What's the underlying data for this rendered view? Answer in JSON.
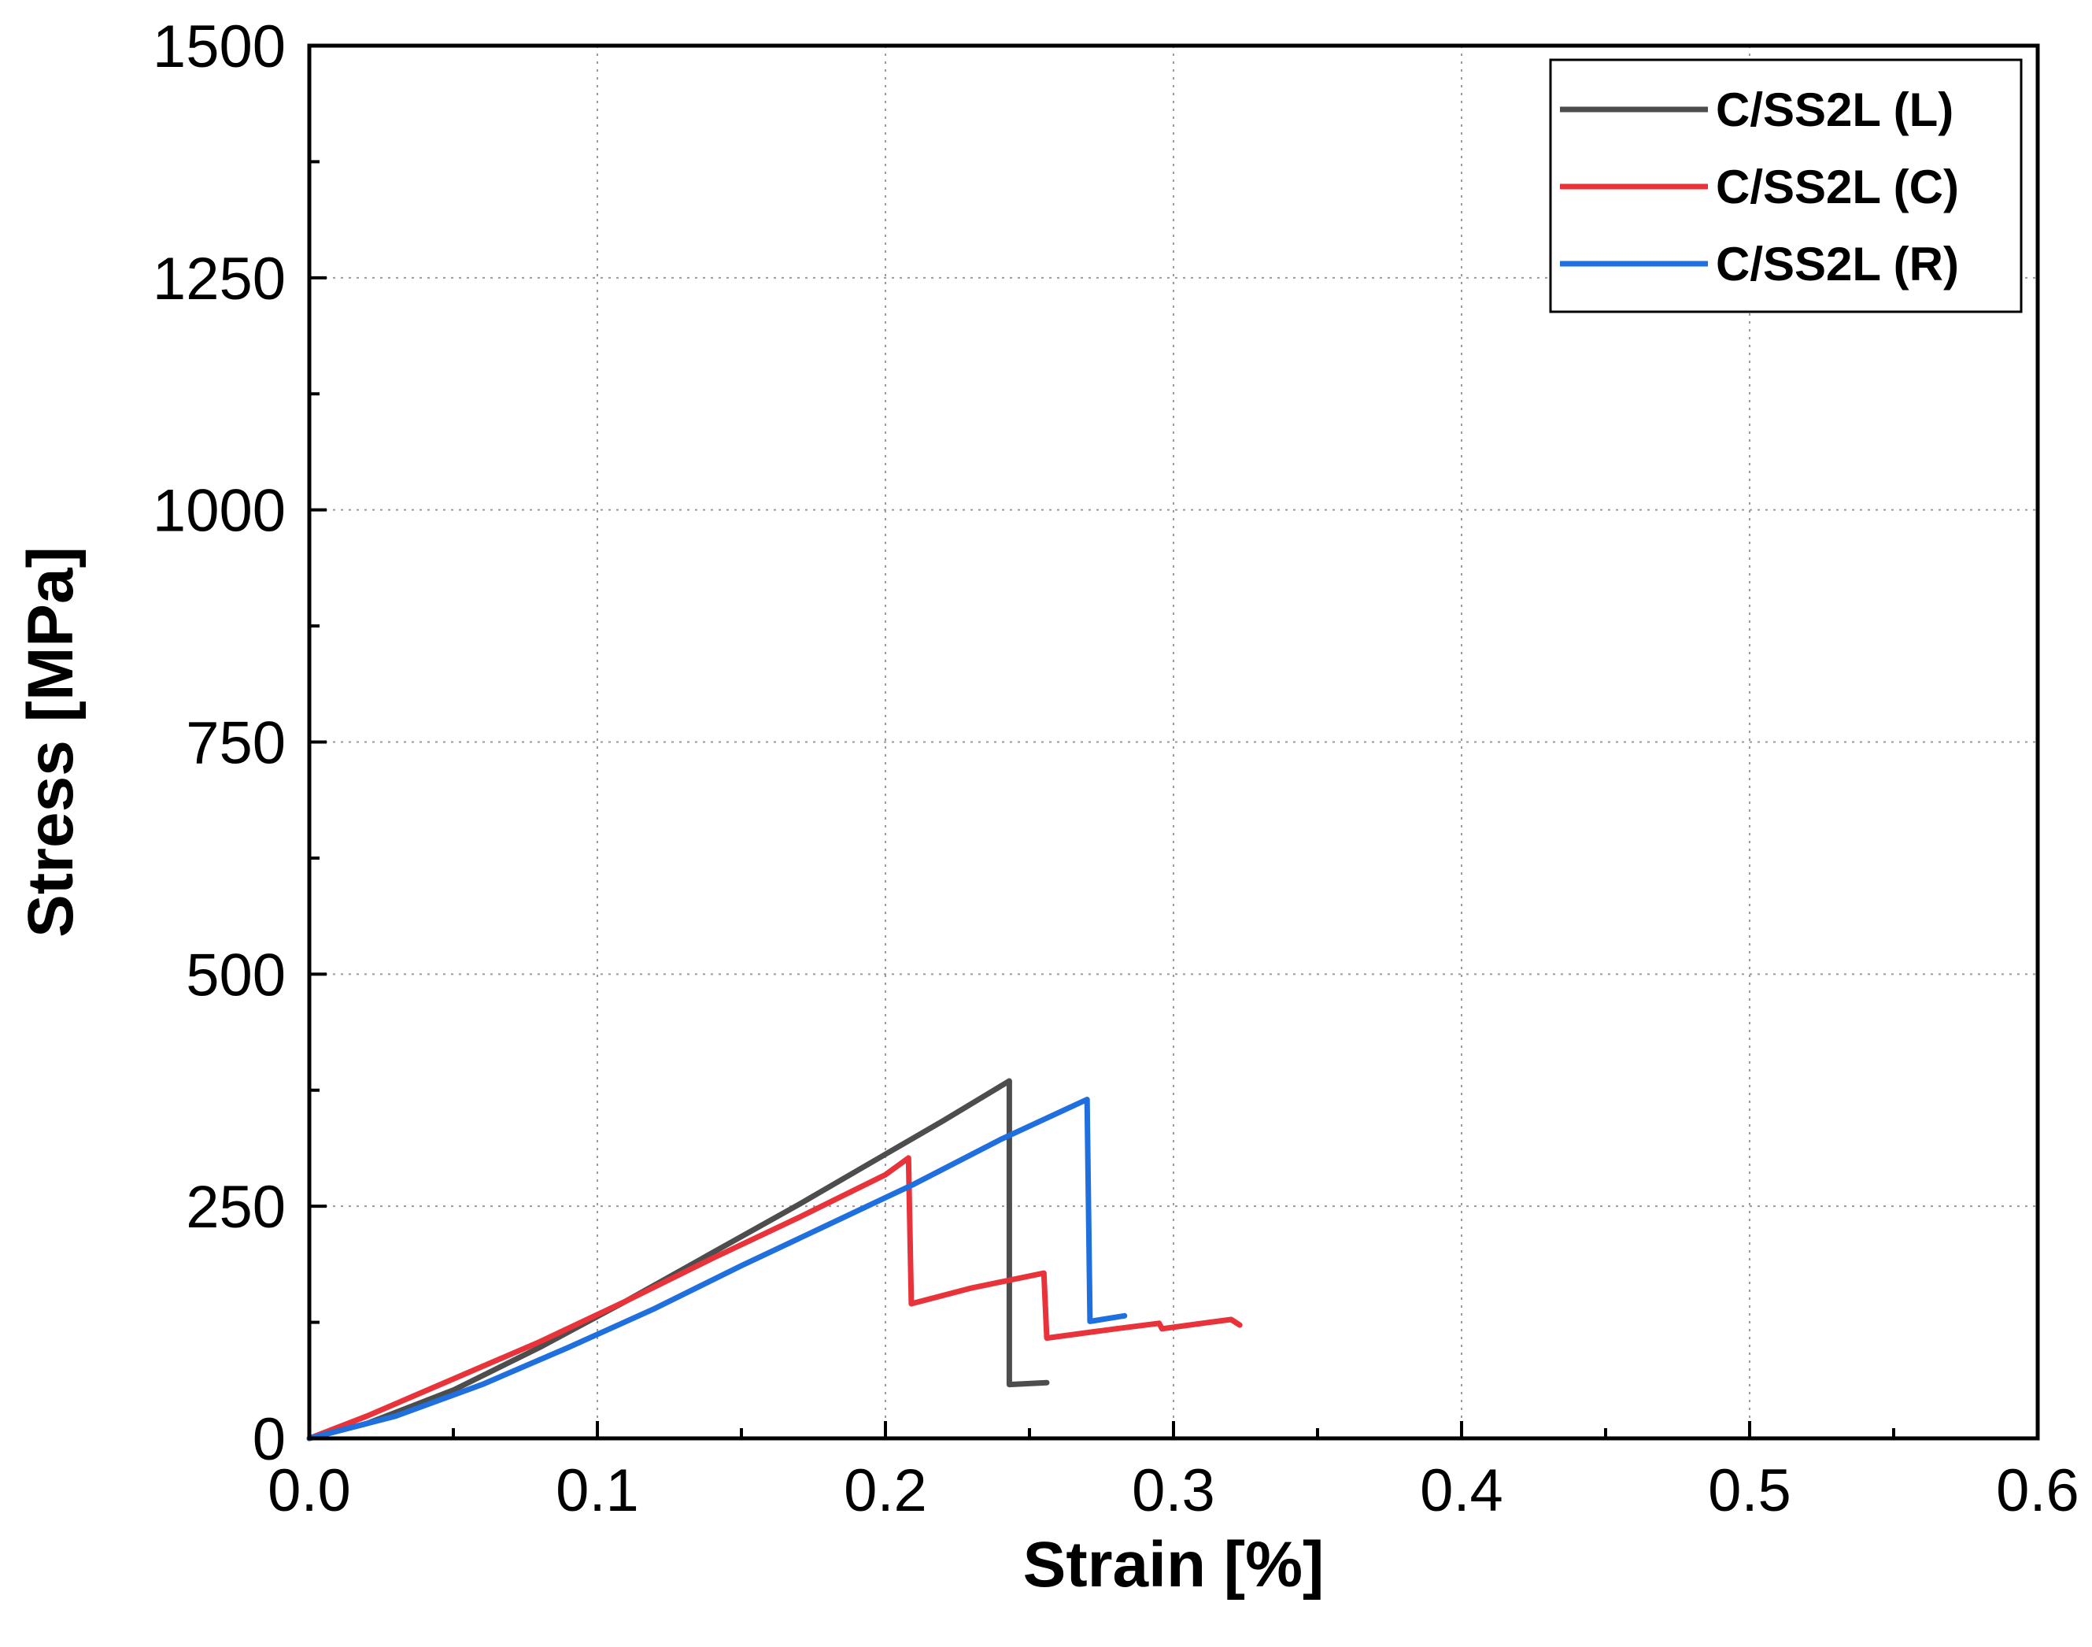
{
  "chart_data": {
    "type": "line",
    "title": "",
    "xlabel": "Strain [%]",
    "ylabel": "Stress [MPa]",
    "xlim": [
      0.0,
      0.6
    ],
    "ylim": [
      0,
      1500
    ],
    "xticks": [
      "0.0",
      "0.1",
      "0.2",
      "0.3",
      "0.4",
      "0.5",
      "0.6"
    ],
    "yticks": [
      "0",
      "250",
      "500",
      "750",
      "1000",
      "1250",
      "1500"
    ],
    "grid": true,
    "legend_position": "top-right",
    "series": [
      {
        "name": "C/SS2L (L)",
        "color": "#4d4d4d",
        "points": [
          [
            0.0,
            0
          ],
          [
            0.02,
            16
          ],
          [
            0.05,
            52
          ],
          [
            0.08,
            98
          ],
          [
            0.11,
            148
          ],
          [
            0.14,
            200
          ],
          [
            0.17,
            252
          ],
          [
            0.2,
            306
          ],
          [
            0.22,
            342
          ],
          [
            0.243,
            385
          ],
          [
            0.243,
            58
          ],
          [
            0.256,
            60
          ]
        ]
      },
      {
        "name": "C/SS2L (C)",
        "color": "#e8333a",
        "points": [
          [
            0.0,
            0
          ],
          [
            0.02,
            24
          ],
          [
            0.05,
            64
          ],
          [
            0.08,
            104
          ],
          [
            0.11,
            148
          ],
          [
            0.14,
            194
          ],
          [
            0.17,
            238
          ],
          [
            0.2,
            284
          ],
          [
            0.208,
            302
          ],
          [
            0.209,
            145
          ],
          [
            0.23,
            162
          ],
          [
            0.255,
            178
          ],
          [
            0.256,
            108
          ],
          [
            0.28,
            118
          ],
          [
            0.295,
            124
          ],
          [
            0.296,
            118
          ],
          [
            0.31,
            124
          ],
          [
            0.32,
            128
          ],
          [
            0.323,
            122
          ]
        ]
      },
      {
        "name": "C/SS2L (R)",
        "color": "#1f6fdf",
        "points": [
          [
            0.0,
            0
          ],
          [
            0.03,
            24
          ],
          [
            0.06,
            58
          ],
          [
            0.09,
            98
          ],
          [
            0.12,
            140
          ],
          [
            0.15,
            186
          ],
          [
            0.18,
            230
          ],
          [
            0.21,
            274
          ],
          [
            0.24,
            322
          ],
          [
            0.27,
            365
          ],
          [
            0.271,
            126
          ],
          [
            0.283,
            132
          ]
        ]
      }
    ]
  }
}
